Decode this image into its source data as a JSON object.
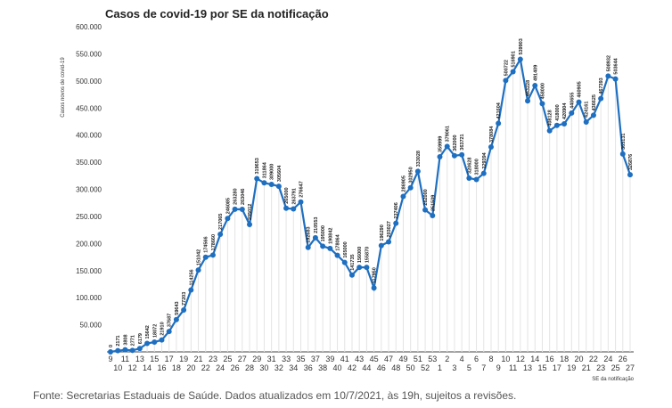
{
  "chart_data": {
    "type": "line",
    "title": "Casos de covid-19 por SE da notificação",
    "ylabel": "Casos novos de covid-19",
    "xlabel": "SE da notificação",
    "ylim": [
      0,
      600000
    ],
    "yticks": [
      "",
      "50.000",
      "100.000",
      "150.000",
      "200.000",
      "250.000",
      "300.000",
      "350.000",
      "400.000",
      "450.000",
      "500.000",
      "550.000",
      "600.000"
    ],
    "grid": "vertical",
    "categories": [
      "9",
      "10",
      "11",
      "12",
      "13",
      "14",
      "15",
      "16",
      "17",
      "18",
      "19",
      "20",
      "21",
      "22",
      "23",
      "24",
      "25",
      "26",
      "27",
      "28",
      "29",
      "30",
      "31",
      "32",
      "33",
      "34",
      "35",
      "36",
      "37",
      "38",
      "39",
      "40",
      "41",
      "42",
      "43",
      "44",
      "45",
      "46",
      "47",
      "48",
      "49",
      "50",
      "51",
      "52",
      "53",
      "1",
      "2",
      "3",
      "4",
      "5",
      "6",
      "7",
      "8",
      "9",
      "10",
      "11",
      "12",
      "13",
      "14",
      "15",
      "16",
      "17",
      "18",
      "19",
      "20",
      "21",
      "22",
      "23",
      "24",
      "25",
      "26",
      "27"
    ],
    "series": [
      {
        "name": "Casos",
        "color": "#1f6fc0",
        "values": [
          0,
          2171,
          3808,
          2771,
          6179,
          15642,
          18072,
          21910,
          37687,
          59643,
          77203,
          114256,
          151042,
          174566,
          178660,
          217065,
          246085,
          263280,
          263046,
          235012,
          319653,
          311864,
          309000,
          305604,
          265000,
          263791,
          276647,
          192683,
          210553,
          195000,
          190842,
          178064,
          165000,
          141735,
          156000,
          155870,
          117950,
          196290,
          203027,
          237406,
          286905,
          302950,
          333028,
          262000,
          251509,
          359999,
          379061,
          362000,
          363721,
          320628,
          318000,
          329394,
          378084,
          421604,
          500722,
          516901,
          539903,
          463228,
          491409,
          458000,
          408128,
          418000,
          420904,
          440655,
          460905,
          424161,
          436625,
          467393,
          508932,
          503644,
          365131,
          326876
        ]
      }
    ]
  },
  "footer": "Fonte: Secretarias Estaduais de Saúde. Dados atualizados em 10/7/2021, às 19h, sujeitos a revisões."
}
